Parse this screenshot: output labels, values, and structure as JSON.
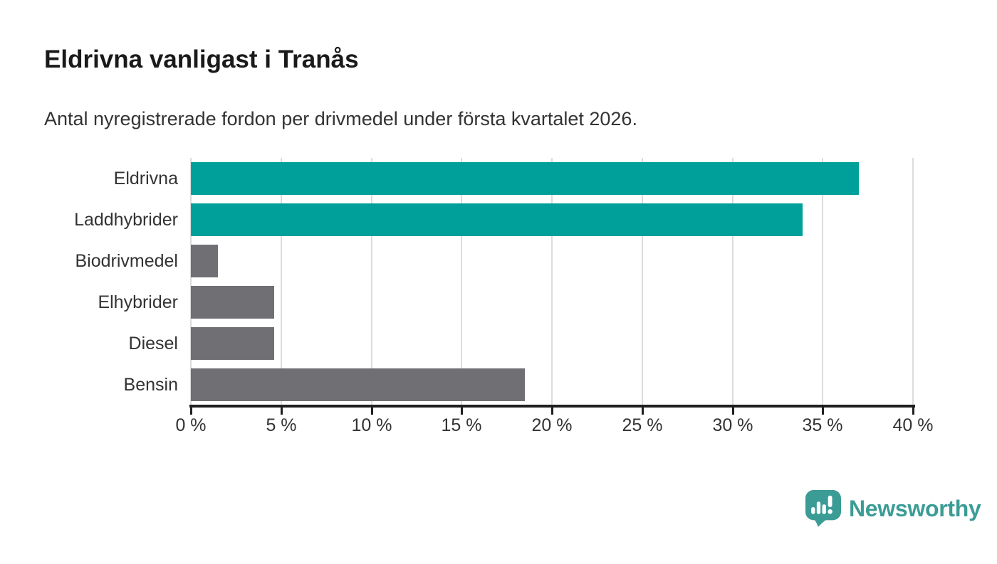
{
  "title": "Eldrivna vanligast i Tranås",
  "subtitle": "Antal nyregistrerade fordon per drivmedel under första kvartalet 2026.",
  "chart_data": {
    "type": "bar",
    "orientation": "horizontal",
    "title": "Eldrivna vanligast i Tranås",
    "subtitle": "Antal nyregistrerade fordon per drivmedel under första kvartalet 2026.",
    "categories": [
      "Eldrivna",
      "Laddhybrider",
      "Biodrivmedel",
      "Elhybrider",
      "Diesel",
      "Bensin"
    ],
    "values": [
      37.0,
      33.9,
      1.5,
      4.6,
      4.6,
      18.5
    ],
    "unit": "%",
    "xlabel": "",
    "ylabel": "",
    "xlim": [
      0,
      40
    ],
    "x_tick_labels": [
      "0 %",
      "5 %",
      "10 %",
      "15 %",
      "20 %",
      "25 %",
      "30 %",
      "35 %",
      "40 %"
    ],
    "grid": true,
    "legend": false,
    "bar_colors": [
      "#00A09A",
      "#00A09A",
      "#6F6F74",
      "#6F6F74",
      "#6F6F74",
      "#6F6F74"
    ]
  },
  "colors": {
    "accent_teal": "#00A09A",
    "neutral_gray": "#6F6F74",
    "gridline": "#dcdcdc",
    "axis": "#1f1f1f",
    "text": "#333333",
    "title_text": "#1a1a1a",
    "brand_teal": "#3B9C96"
  },
  "branding": {
    "logo_text": "Newsworthy"
  }
}
